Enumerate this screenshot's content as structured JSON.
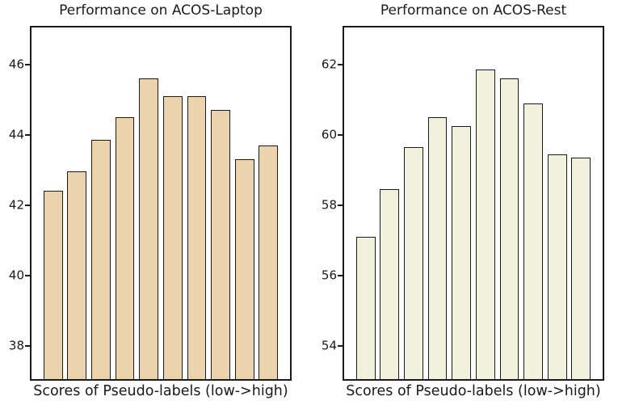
{
  "figure": {
    "background": "#ffffff",
    "text_color": "#1a1a1a",
    "spine_color": "#1a1a1a"
  },
  "chart_data": [
    {
      "type": "bar",
      "title": "Performance on ACOS-Laptop",
      "xlabel": "Scores of Pseudo-labels (low->high)",
      "ylabel": "",
      "values": [
        42.4,
        42.95,
        43.85,
        44.5,
        45.6,
        45.1,
        45.1,
        44.7,
        43.3,
        43.7
      ],
      "yticks": [
        38,
        40,
        42,
        44,
        46
      ],
      "ylim": [
        37.05,
        47.05
      ],
      "xlim": [
        -0.9,
        9.9
      ],
      "bar_width": 0.8,
      "bar_color": "#ebd3ad",
      "bar_edge_color": "#1a1a1a",
      "grid": false,
      "legend": null,
      "x_tick_labels_visible": false
    },
    {
      "type": "bar",
      "title": "Performance on ACOS-Rest",
      "xlabel": "Scores of Pseudo-labels (low->high)",
      "ylabel": "",
      "values": [
        57.1,
        58.45,
        59.65,
        60.5,
        60.25,
        61.85,
        61.6,
        60.9,
        59.45,
        59.35
      ],
      "yticks": [
        54,
        56,
        58,
        60,
        62
      ],
      "ylim": [
        53.05,
        63.05
      ],
      "xlim": [
        -0.9,
        9.9
      ],
      "bar_width": 0.8,
      "bar_color": "#f2f1de",
      "bar_edge_color": "#1a1a1a",
      "grid": false,
      "legend": null,
      "x_tick_labels_visible": false
    }
  ]
}
